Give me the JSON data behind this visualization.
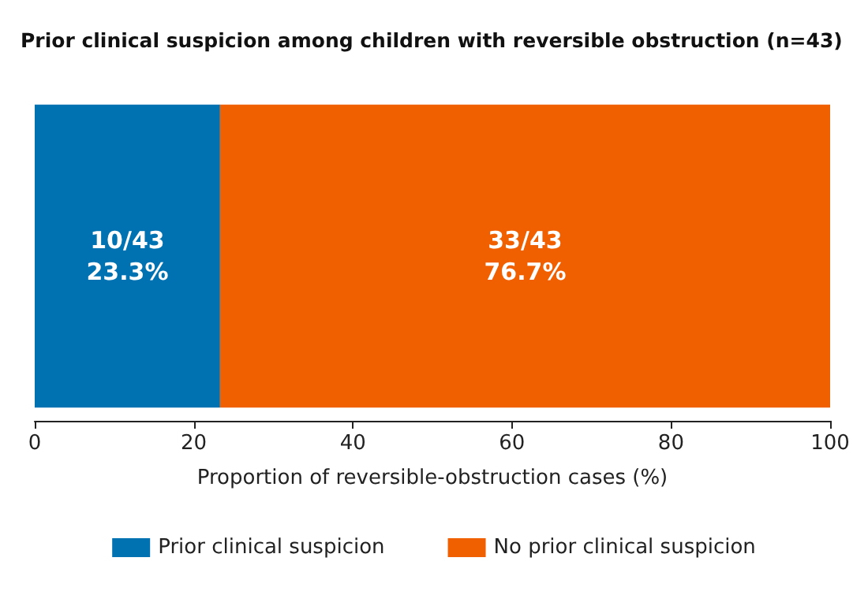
{
  "chart_data": {
    "type": "bar",
    "orientation": "horizontal",
    "stacked": true,
    "title": "Prior clinical suspicion among children with reversible obstruction (n=43)",
    "xlabel": "Proportion of reversible-obstruction cases (%)",
    "categories": [
      null
    ],
    "series": [
      {
        "name": "Prior clinical suspicion",
        "color": "#0072b2",
        "values": [
          23.3
        ],
        "value_labels": [
          "10/43\n23.3%"
        ]
      },
      {
        "name": "No prior clinical suspicion",
        "color": "#f06000",
        "values": [
          76.7
        ],
        "value_labels": [
          "33/43\n76.7%"
        ]
      }
    ],
    "xlim": [
      0,
      100
    ],
    "xticks": [
      0,
      20,
      40,
      60,
      80,
      100
    ],
    "legend": "bottom",
    "tick_labels": "x",
    "grid": false
  }
}
